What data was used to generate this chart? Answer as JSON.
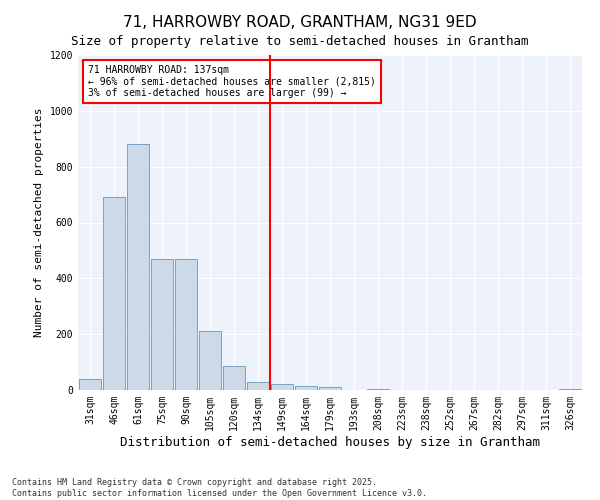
{
  "title": "71, HARROWBY ROAD, GRANTHAM, NG31 9ED",
  "subtitle": "Size of property relative to semi-detached houses in Grantham",
  "xlabel": "Distribution of semi-detached houses by size in Grantham",
  "ylabel": "Number of semi-detached properties",
  "categories": [
    "31sqm",
    "46sqm",
    "61sqm",
    "75sqm",
    "90sqm",
    "105sqm",
    "120sqm",
    "134sqm",
    "149sqm",
    "164sqm",
    "179sqm",
    "193sqm",
    "208sqm",
    "223sqm",
    "238sqm",
    "252sqm",
    "267sqm",
    "282sqm",
    "297sqm",
    "311sqm",
    "326sqm"
  ],
  "values": [
    40,
    690,
    880,
    470,
    470,
    210,
    85,
    30,
    20,
    15,
    10,
    0,
    5,
    0,
    0,
    0,
    0,
    0,
    0,
    0,
    5
  ],
  "bar_color": "#ccd9e8",
  "bar_edge_color": "#6699bb",
  "vline_x_idx": 7,
  "annotation_title": "71 HARROWBY ROAD: 137sqm",
  "annotation_line1": "← 96% of semi-detached houses are smaller (2,815)",
  "annotation_line2": "3% of semi-detached houses are larger (99) →",
  "ylim": [
    0,
    1200
  ],
  "yticks": [
    0,
    200,
    400,
    600,
    800,
    1000,
    1200
  ],
  "background_color": "#eef2fb",
  "grid_color": "#ffffff",
  "footer_line1": "Contains HM Land Registry data © Crown copyright and database right 2025.",
  "footer_line2": "Contains public sector information licensed under the Open Government Licence v3.0.",
  "title_fontsize": 11,
  "subtitle_fontsize": 9,
  "xlabel_fontsize": 9,
  "ylabel_fontsize": 8,
  "tick_fontsize": 7,
  "footer_fontsize": 6
}
